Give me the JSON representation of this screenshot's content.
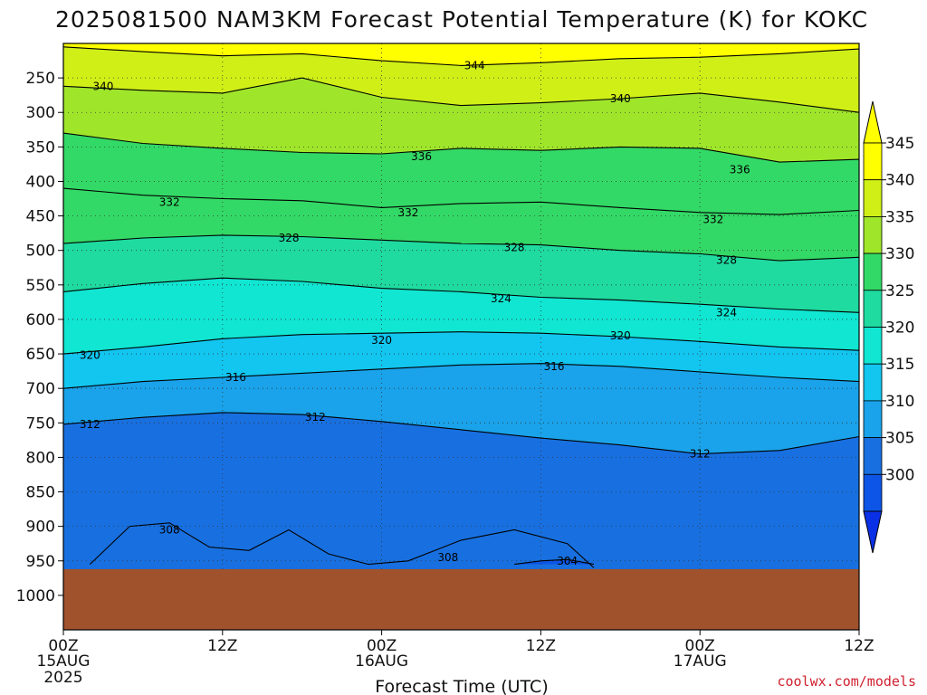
{
  "chart_data": {
    "type": "heatmap",
    "title": "2025081500 NAM3KM Forecast Potential Temperature (K) for KOKC",
    "xlabel": "Forecast Time (UTC)",
    "ylabel": "",
    "credit": "coolwx.com/models",
    "x_ticks": [
      {
        "label": "00Z",
        "sub": "15AUG",
        "sub2": "2025",
        "hour": 0
      },
      {
        "label": "12Z",
        "sub": "",
        "sub2": "",
        "hour": 12
      },
      {
        "label": "00Z",
        "sub": "16AUG",
        "sub2": "",
        "hour": 24
      },
      {
        "label": "12Z",
        "sub": "",
        "sub2": "",
        "hour": 36
      },
      {
        "label": "00Z",
        "sub": "17AUG",
        "sub2": "",
        "hour": 48
      },
      {
        "label": "12Z",
        "sub": "",
        "sub2": "",
        "hour": 60
      }
    ],
    "xlim": [
      0,
      60
    ],
    "y_ticks": [
      "250",
      "300",
      "350",
      "400",
      "450",
      "500",
      "550",
      "600",
      "650",
      "700",
      "750",
      "800",
      "850",
      "900",
      "950",
      "1000"
    ],
    "y_levels": [
      250,
      300,
      350,
      400,
      450,
      500,
      550,
      600,
      650,
      700,
      750,
      800,
      850,
      900,
      950,
      1000
    ],
    "ylim": [
      200,
      1050
    ],
    "surface_pressure": 962,
    "colorbar": {
      "labels": [
        "345",
        "340",
        "335",
        "330",
        "325",
        "320",
        "315",
        "310",
        "305",
        "300"
      ],
      "bins": [
        {
          "lo": 345,
          "hi": 350,
          "color": "#ffff00"
        },
        {
          "lo": 340,
          "hi": 345,
          "color": "#cfef17"
        },
        {
          "lo": 335,
          "hi": 340,
          "color": "#9fe62b"
        },
        {
          "lo": 330,
          "hi": 335,
          "color": "#33d966"
        },
        {
          "lo": 325,
          "hi": 330,
          "color": "#1fdba0"
        },
        {
          "lo": 320,
          "hi": 325,
          "color": "#10e6d2"
        },
        {
          "lo": 315,
          "hi": 320,
          "color": "#12c6f0"
        },
        {
          "lo": 310,
          "hi": 315,
          "color": "#1aa3ea"
        },
        {
          "lo": 305,
          "hi": 310,
          "color": "#1870e0"
        },
        {
          "lo": 300,
          "hi": 305,
          "color": "#0d55e6"
        }
      ],
      "over_color": "#ffff00",
      "under_color": "#0a30e6"
    },
    "ground_color": "#a0522d",
    "contours": [
      {
        "value": 344,
        "label": "344",
        "points": [
          [
            0,
            205
          ],
          [
            6,
            212
          ],
          [
            12,
            218
          ],
          [
            18,
            215
          ],
          [
            24,
            225
          ],
          [
            30,
            232
          ],
          [
            36,
            228
          ],
          [
            42,
            222
          ],
          [
            48,
            220
          ],
          [
            54,
            215
          ],
          [
            60,
            208
          ]
        ]
      },
      {
        "value": 340,
        "label": "340",
        "points": [
          [
            0,
            262
          ],
          [
            6,
            268
          ],
          [
            12,
            272
          ],
          [
            18,
            250
          ],
          [
            24,
            278
          ],
          [
            30,
            290
          ],
          [
            36,
            286
          ],
          [
            42,
            280
          ],
          [
            48,
            272
          ],
          [
            54,
            285
          ],
          [
            60,
            300
          ]
        ]
      },
      {
        "value": 336,
        "label": "336",
        "points": [
          [
            0,
            330
          ],
          [
            6,
            345
          ],
          [
            12,
            352
          ],
          [
            18,
            358
          ],
          [
            24,
            360
          ],
          [
            30,
            352
          ],
          [
            36,
            355
          ],
          [
            42,
            350
          ],
          [
            48,
            352
          ],
          [
            54,
            372
          ],
          [
            60,
            368
          ]
        ]
      },
      {
        "value": 332,
        "label": "332",
        "points": [
          [
            0,
            410
          ],
          [
            6,
            420
          ],
          [
            12,
            425
          ],
          [
            18,
            428
          ],
          [
            24,
            438
          ],
          [
            30,
            432
          ],
          [
            36,
            430
          ],
          [
            42,
            438
          ],
          [
            48,
            445
          ],
          [
            54,
            448
          ],
          [
            60,
            442
          ]
        ]
      },
      {
        "value": 328,
        "label": "328",
        "points": [
          [
            0,
            490
          ],
          [
            6,
            482
          ],
          [
            12,
            478
          ],
          [
            18,
            480
          ],
          [
            24,
            485
          ],
          [
            30,
            490
          ],
          [
            36,
            492
          ],
          [
            42,
            500
          ],
          [
            48,
            505
          ],
          [
            54,
            515
          ],
          [
            60,
            510
          ]
        ]
      },
      {
        "value": 324,
        "label": "324",
        "points": [
          [
            0,
            560
          ],
          [
            6,
            548
          ],
          [
            12,
            540
          ],
          [
            18,
            545
          ],
          [
            24,
            555
          ],
          [
            30,
            560
          ],
          [
            36,
            568
          ],
          [
            42,
            572
          ],
          [
            48,
            578
          ],
          [
            54,
            585
          ],
          [
            60,
            590
          ]
        ]
      },
      {
        "value": 320,
        "label": "320",
        "points": [
          [
            0,
            650
          ],
          [
            6,
            640
          ],
          [
            12,
            628
          ],
          [
            18,
            622
          ],
          [
            24,
            620
          ],
          [
            30,
            618
          ],
          [
            36,
            620
          ],
          [
            42,
            625
          ],
          [
            48,
            632
          ],
          [
            54,
            640
          ],
          [
            60,
            645
          ]
        ]
      },
      {
        "value": 316,
        "label": "316",
        "points": [
          [
            0,
            700
          ],
          [
            6,
            690
          ],
          [
            12,
            684
          ],
          [
            18,
            678
          ],
          [
            24,
            672
          ],
          [
            30,
            666
          ],
          [
            36,
            664
          ],
          [
            42,
            668
          ],
          [
            48,
            676
          ],
          [
            54,
            684
          ],
          [
            60,
            690
          ]
        ]
      },
      {
        "value": 312,
        "label": "312",
        "points": [
          [
            0,
            752
          ],
          [
            6,
            742
          ],
          [
            12,
            735
          ],
          [
            18,
            738
          ],
          [
            24,
            748
          ],
          [
            30,
            760
          ],
          [
            36,
            772
          ],
          [
            42,
            782
          ],
          [
            48,
            795
          ],
          [
            54,
            790
          ],
          [
            60,
            770
          ]
        ]
      },
      {
        "value": 308,
        "label": "308",
        "points": [
          [
            2,
            955
          ],
          [
            5,
            900
          ],
          [
            8,
            895
          ],
          [
            11,
            930
          ],
          [
            14,
            935
          ],
          [
            17,
            905
          ],
          [
            20,
            940
          ],
          [
            23,
            955
          ],
          [
            26,
            950
          ],
          [
            30,
            920
          ],
          [
            34,
            905
          ],
          [
            38,
            925
          ],
          [
            40,
            960
          ]
        ]
      },
      {
        "value": 304,
        "label": "304",
        "points": [
          [
            34,
            955
          ],
          [
            36,
            950
          ],
          [
            38,
            948
          ],
          [
            40,
            955
          ]
        ]
      }
    ],
    "contour_labels": [
      {
        "text": "344",
        "hour": 31,
        "p": 232
      },
      {
        "text": "340",
        "hour": 3,
        "p": 262
      },
      {
        "text": "340",
        "hour": 42,
        "p": 280
      },
      {
        "text": "336",
        "hour": 27,
        "p": 364
      },
      {
        "text": "336",
        "hour": 51,
        "p": 383
      },
      {
        "text": "332",
        "hour": 8,
        "p": 430
      },
      {
        "text": "332",
        "hour": 26,
        "p": 445
      },
      {
        "text": "332",
        "hour": 49,
        "p": 455
      },
      {
        "text": "328",
        "hour": 17,
        "p": 482
      },
      {
        "text": "328",
        "hour": 34,
        "p": 496
      },
      {
        "text": "328",
        "hour": 50,
        "p": 514
      },
      {
        "text": "324",
        "hour": 33,
        "p": 570
      },
      {
        "text": "324",
        "hour": 50,
        "p": 590
      },
      {
        "text": "320",
        "hour": 2,
        "p": 652
      },
      {
        "text": "320",
        "hour": 24,
        "p": 630
      },
      {
        "text": "320",
        "hour": 42,
        "p": 624
      },
      {
        "text": "316",
        "hour": 13,
        "p": 684
      },
      {
        "text": "316",
        "hour": 37,
        "p": 668
      },
      {
        "text": "312",
        "hour": 2,
        "p": 752
      },
      {
        "text": "312",
        "hour": 19,
        "p": 742
      },
      {
        "text": "312",
        "hour": 48,
        "p": 795
      },
      {
        "text": "308",
        "hour": 8,
        "p": 905
      },
      {
        "text": "308",
        "hour": 29,
        "p": 945
      },
      {
        "text": "304",
        "hour": 38,
        "p": 950
      }
    ]
  }
}
